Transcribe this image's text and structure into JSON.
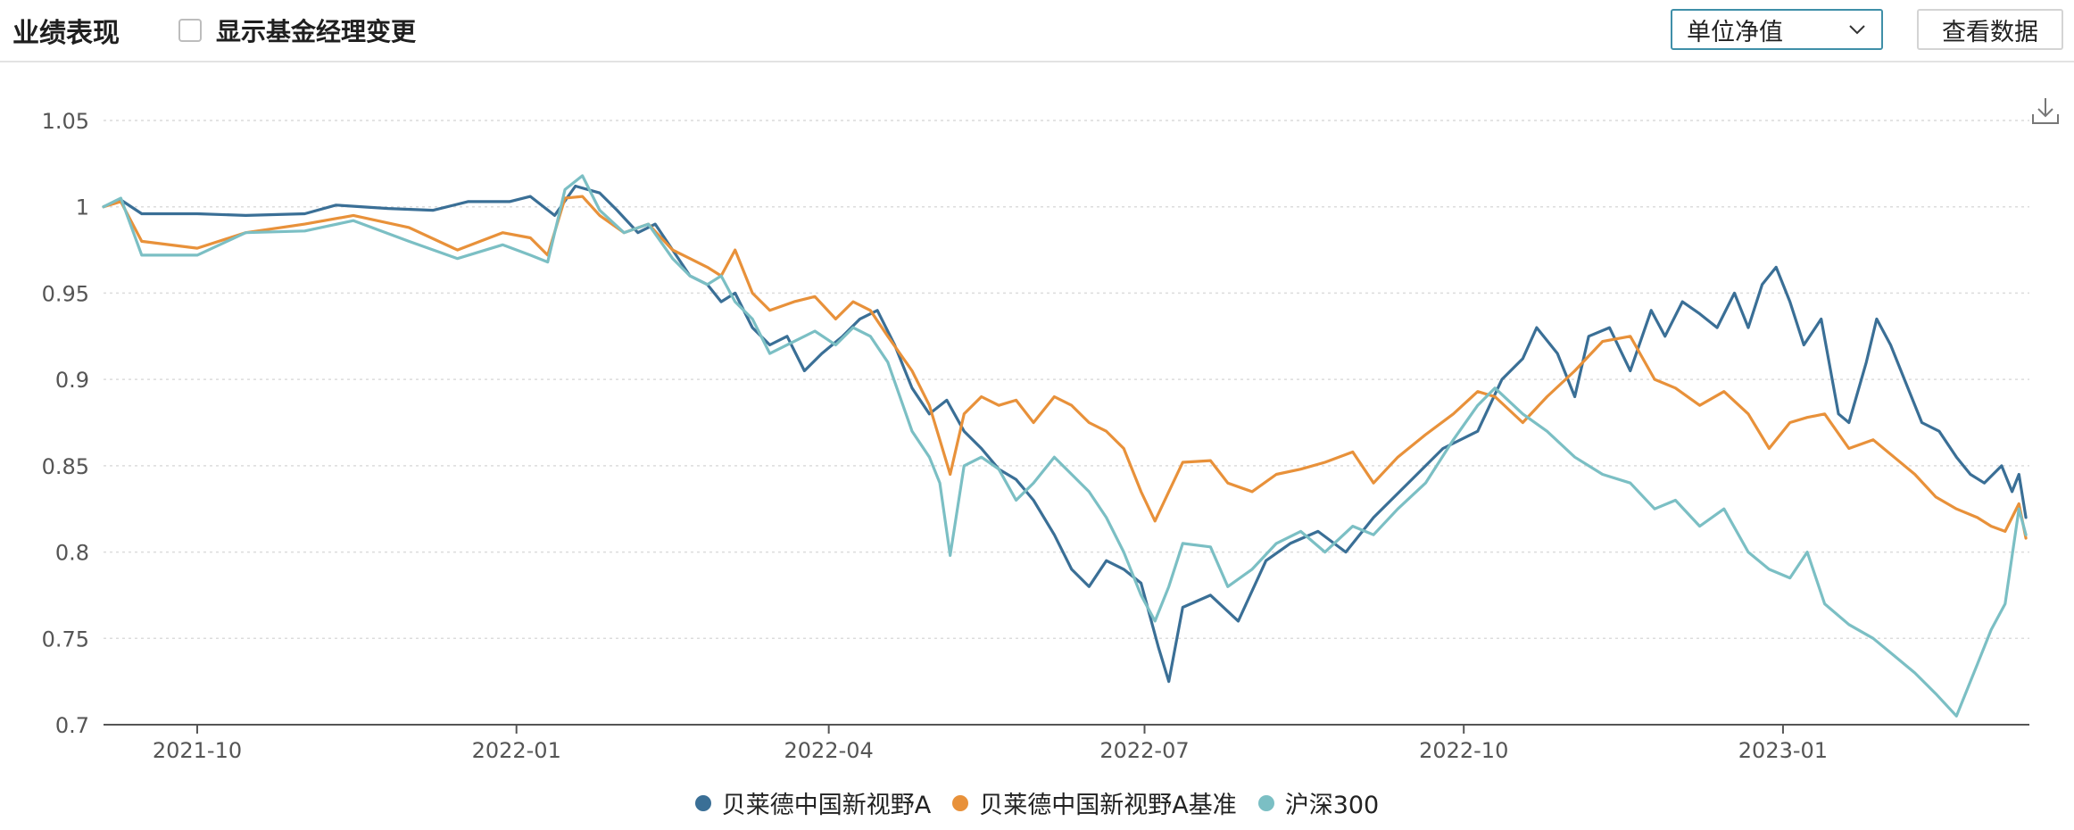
{
  "header": {
    "title": "业绩表现",
    "toggle_label": "显示基金经理变更",
    "select_value": "单位净值",
    "view_data_label": "查看数据"
  },
  "icons": {
    "dropdown": "chevron-down-icon",
    "download": "download-icon"
  },
  "colors": {
    "series_a": "#3a6f96",
    "series_b": "#e8913a",
    "series_c": "#7bbfc4",
    "select_border": "#3f8fa8"
  },
  "chart_data": {
    "type": "line",
    "ylim": [
      0.7,
      1.05
    ],
    "yticks": [
      0.7,
      0.75,
      0.8,
      0.85,
      0.9,
      0.95,
      1,
      1.05
    ],
    "ytick_labels": [
      "0.7",
      "0.75",
      "0.8",
      "0.85",
      "0.9",
      "0.95",
      "1",
      "1.05"
    ],
    "xlim": [
      "2021-09-04",
      "2023-03-13"
    ],
    "xticks": [
      "2021-10-01",
      "2022-01-01",
      "2022-04-01",
      "2022-07-01",
      "2022-10-01",
      "2023-01-01"
    ],
    "xtick_labels": [
      "2021-10",
      "2022-01",
      "2022-04",
      "2022-07",
      "2022-10",
      "2023-01"
    ],
    "grid": true,
    "legend": "bottom-center",
    "series": [
      {
        "name": "贝莱德中国新视野A",
        "color": "#3a6f96",
        "points": [
          [
            "2021-09-04",
            1.0
          ],
          [
            "2021-09-09",
            1.004
          ],
          [
            "2021-09-15",
            0.996
          ],
          [
            "2021-10-01",
            0.996
          ],
          [
            "2021-10-15",
            0.995
          ],
          [
            "2021-11-01",
            0.996
          ],
          [
            "2021-11-10",
            1.001
          ],
          [
            "2021-11-25",
            0.999
          ],
          [
            "2021-12-08",
            0.998
          ],
          [
            "2021-12-18",
            1.003
          ],
          [
            "2021-12-30",
            1.003
          ],
          [
            "2022-01-05",
            1.006
          ],
          [
            "2022-01-12",
            0.995
          ],
          [
            "2022-01-18",
            1.012
          ],
          [
            "2022-01-25",
            1.008
          ],
          [
            "2022-01-30",
            0.998
          ],
          [
            "2022-02-05",
            0.985
          ],
          [
            "2022-02-10",
            0.99
          ],
          [
            "2022-02-15",
            0.975
          ],
          [
            "2022-02-20",
            0.96
          ],
          [
            "2022-02-25",
            0.955
          ],
          [
            "2022-03-01",
            0.945
          ],
          [
            "2022-03-05",
            0.95
          ],
          [
            "2022-03-10",
            0.93
          ],
          [
            "2022-03-15",
            0.92
          ],
          [
            "2022-03-20",
            0.925
          ],
          [
            "2022-03-25",
            0.905
          ],
          [
            "2022-03-30",
            0.915
          ],
          [
            "2022-04-05",
            0.925
          ],
          [
            "2022-04-10",
            0.935
          ],
          [
            "2022-04-15",
            0.94
          ],
          [
            "2022-04-20",
            0.92
          ],
          [
            "2022-04-25",
            0.895
          ],
          [
            "2022-04-30",
            0.88
          ],
          [
            "2022-05-05",
            0.888
          ],
          [
            "2022-05-10",
            0.87
          ],
          [
            "2022-05-15",
            0.86
          ],
          [
            "2022-05-20",
            0.848
          ],
          [
            "2022-05-25",
            0.842
          ],
          [
            "2022-05-30",
            0.83
          ],
          [
            "2022-06-05",
            0.81
          ],
          [
            "2022-06-10",
            0.79
          ],
          [
            "2022-06-15",
            0.78
          ],
          [
            "2022-06-20",
            0.795
          ],
          [
            "2022-06-25",
            0.79
          ],
          [
            "2022-06-30",
            0.782
          ],
          [
            "2022-07-05",
            0.745
          ],
          [
            "2022-07-08",
            0.725
          ],
          [
            "2022-07-12",
            0.768
          ],
          [
            "2022-07-20",
            0.775
          ],
          [
            "2022-07-28",
            0.76
          ],
          [
            "2022-08-05",
            0.795
          ],
          [
            "2022-08-12",
            0.805
          ],
          [
            "2022-08-20",
            0.812
          ],
          [
            "2022-08-28",
            0.8
          ],
          [
            "2022-09-05",
            0.82
          ],
          [
            "2022-09-15",
            0.84
          ],
          [
            "2022-09-25",
            0.86
          ],
          [
            "2022-10-05",
            0.87
          ],
          [
            "2022-10-12",
            0.9
          ],
          [
            "2022-10-18",
            0.912
          ],
          [
            "2022-10-22",
            0.93
          ],
          [
            "2022-10-28",
            0.915
          ],
          [
            "2022-11-02",
            0.89
          ],
          [
            "2022-11-06",
            0.925
          ],
          [
            "2022-11-12",
            0.93
          ],
          [
            "2022-11-18",
            0.905
          ],
          [
            "2022-11-24",
            0.94
          ],
          [
            "2022-11-28",
            0.925
          ],
          [
            "2022-12-03",
            0.945
          ],
          [
            "2022-12-08",
            0.938
          ],
          [
            "2022-12-13",
            0.93
          ],
          [
            "2022-12-18",
            0.95
          ],
          [
            "2022-12-22",
            0.93
          ],
          [
            "2022-12-26",
            0.955
          ],
          [
            "2022-12-30",
            0.965
          ],
          [
            "2023-01-03",
            0.945
          ],
          [
            "2023-01-07",
            0.92
          ],
          [
            "2023-01-12",
            0.935
          ],
          [
            "2023-01-17",
            0.88
          ],
          [
            "2023-01-20",
            0.875
          ],
          [
            "2023-01-25",
            0.91
          ],
          [
            "2023-01-28",
            0.935
          ],
          [
            "2023-02-01",
            0.92
          ],
          [
            "2023-02-05",
            0.9
          ],
          [
            "2023-02-10",
            0.875
          ],
          [
            "2023-02-15",
            0.87
          ],
          [
            "2023-02-20",
            0.855
          ],
          [
            "2023-02-24",
            0.845
          ],
          [
            "2023-02-28",
            0.84
          ],
          [
            "2023-03-05",
            0.85
          ],
          [
            "2023-03-08",
            0.835
          ],
          [
            "2023-03-10",
            0.845
          ],
          [
            "2023-03-12",
            0.82
          ]
        ]
      },
      {
        "name": "贝莱德中国新视野A基准",
        "color": "#e8913a",
        "points": [
          [
            "2021-09-04",
            1.0
          ],
          [
            "2021-09-09",
            1.003
          ],
          [
            "2021-09-15",
            0.98
          ],
          [
            "2021-10-01",
            0.976
          ],
          [
            "2021-10-15",
            0.985
          ],
          [
            "2021-11-01",
            0.99
          ],
          [
            "2021-11-15",
            0.995
          ],
          [
            "2021-12-01",
            0.988
          ],
          [
            "2021-12-15",
            0.975
          ],
          [
            "2021-12-28",
            0.985
          ],
          [
            "2022-01-05",
            0.982
          ],
          [
            "2022-01-10",
            0.972
          ],
          [
            "2022-01-15",
            1.005
          ],
          [
            "2022-01-20",
            1.006
          ],
          [
            "2022-01-25",
            0.995
          ],
          [
            "2022-02-01",
            0.985
          ],
          [
            "2022-02-08",
            0.99
          ],
          [
            "2022-02-15",
            0.975
          ],
          [
            "2022-02-20",
            0.97
          ],
          [
            "2022-02-25",
            0.965
          ],
          [
            "2022-03-01",
            0.96
          ],
          [
            "2022-03-05",
            0.975
          ],
          [
            "2022-03-10",
            0.95
          ],
          [
            "2022-03-15",
            0.94
          ],
          [
            "2022-03-22",
            0.945
          ],
          [
            "2022-03-28",
            0.948
          ],
          [
            "2022-04-03",
            0.935
          ],
          [
            "2022-04-08",
            0.945
          ],
          [
            "2022-04-13",
            0.94
          ],
          [
            "2022-04-18",
            0.925
          ],
          [
            "2022-04-25",
            0.905
          ],
          [
            "2022-04-30",
            0.885
          ],
          [
            "2022-05-03",
            0.865
          ],
          [
            "2022-05-06",
            0.845
          ],
          [
            "2022-05-10",
            0.88
          ],
          [
            "2022-05-15",
            0.89
          ],
          [
            "2022-05-20",
            0.885
          ],
          [
            "2022-05-25",
            0.888
          ],
          [
            "2022-05-30",
            0.875
          ],
          [
            "2022-06-05",
            0.89
          ],
          [
            "2022-06-10",
            0.885
          ],
          [
            "2022-06-15",
            0.875
          ],
          [
            "2022-06-20",
            0.87
          ],
          [
            "2022-06-25",
            0.86
          ],
          [
            "2022-06-30",
            0.835
          ],
          [
            "2022-07-04",
            0.818
          ],
          [
            "2022-07-08",
            0.835
          ],
          [
            "2022-07-12",
            0.852
          ],
          [
            "2022-07-20",
            0.853
          ],
          [
            "2022-07-25",
            0.84
          ],
          [
            "2022-08-01",
            0.835
          ],
          [
            "2022-08-08",
            0.845
          ],
          [
            "2022-08-15",
            0.848
          ],
          [
            "2022-08-22",
            0.852
          ],
          [
            "2022-08-30",
            0.858
          ],
          [
            "2022-09-05",
            0.84
          ],
          [
            "2022-09-12",
            0.855
          ],
          [
            "2022-09-20",
            0.868
          ],
          [
            "2022-09-28",
            0.88
          ],
          [
            "2022-10-05",
            0.893
          ],
          [
            "2022-10-10",
            0.89
          ],
          [
            "2022-10-18",
            0.875
          ],
          [
            "2022-10-25",
            0.89
          ],
          [
            "2022-11-02",
            0.905
          ],
          [
            "2022-11-10",
            0.922
          ],
          [
            "2022-11-18",
            0.925
          ],
          [
            "2022-11-25",
            0.9
          ],
          [
            "2022-12-01",
            0.895
          ],
          [
            "2022-12-08",
            0.885
          ],
          [
            "2022-12-15",
            0.893
          ],
          [
            "2022-12-22",
            0.88
          ],
          [
            "2022-12-28",
            0.86
          ],
          [
            "2023-01-03",
            0.875
          ],
          [
            "2023-01-08",
            0.878
          ],
          [
            "2023-01-13",
            0.88
          ],
          [
            "2023-01-20",
            0.86
          ],
          [
            "2023-01-27",
            0.865
          ],
          [
            "2023-02-02",
            0.855
          ],
          [
            "2023-02-08",
            0.845
          ],
          [
            "2023-02-14",
            0.832
          ],
          [
            "2023-02-20",
            0.825
          ],
          [
            "2023-02-26",
            0.82
          ],
          [
            "2023-03-02",
            0.815
          ],
          [
            "2023-03-06",
            0.812
          ],
          [
            "2023-03-10",
            0.828
          ],
          [
            "2023-03-12",
            0.808
          ]
        ]
      },
      {
        "name": "沪深300",
        "color": "#7bbfc4",
        "points": [
          [
            "2021-09-04",
            1.0
          ],
          [
            "2021-09-09",
            1.005
          ],
          [
            "2021-09-15",
            0.972
          ],
          [
            "2021-10-01",
            0.972
          ],
          [
            "2021-10-15",
            0.985
          ],
          [
            "2021-11-01",
            0.986
          ],
          [
            "2021-11-15",
            0.992
          ],
          [
            "2021-12-01",
            0.98
          ],
          [
            "2021-12-15",
            0.97
          ],
          [
            "2021-12-28",
            0.978
          ],
          [
            "2022-01-05",
            0.972
          ],
          [
            "2022-01-10",
            0.968
          ],
          [
            "2022-01-15",
            1.01
          ],
          [
            "2022-01-20",
            1.018
          ],
          [
            "2022-01-25",
            0.998
          ],
          [
            "2022-02-01",
            0.985
          ],
          [
            "2022-02-08",
            0.99
          ],
          [
            "2022-02-15",
            0.97
          ],
          [
            "2022-02-20",
            0.96
          ],
          [
            "2022-02-25",
            0.955
          ],
          [
            "2022-03-01",
            0.96
          ],
          [
            "2022-03-05",
            0.945
          ],
          [
            "2022-03-10",
            0.935
          ],
          [
            "2022-03-15",
            0.915
          ],
          [
            "2022-03-22",
            0.922
          ],
          [
            "2022-03-28",
            0.928
          ],
          [
            "2022-04-03",
            0.92
          ],
          [
            "2022-04-08",
            0.93
          ],
          [
            "2022-04-13",
            0.925
          ],
          [
            "2022-04-18",
            0.91
          ],
          [
            "2022-04-25",
            0.87
          ],
          [
            "2022-04-30",
            0.855
          ],
          [
            "2022-05-03",
            0.84
          ],
          [
            "2022-05-06",
            0.798
          ],
          [
            "2022-05-10",
            0.85
          ],
          [
            "2022-05-15",
            0.855
          ],
          [
            "2022-05-20",
            0.848
          ],
          [
            "2022-05-25",
            0.83
          ],
          [
            "2022-05-30",
            0.84
          ],
          [
            "2022-06-05",
            0.855
          ],
          [
            "2022-06-10",
            0.845
          ],
          [
            "2022-06-15",
            0.835
          ],
          [
            "2022-06-20",
            0.82
          ],
          [
            "2022-06-25",
            0.8
          ],
          [
            "2022-06-30",
            0.775
          ],
          [
            "2022-07-04",
            0.76
          ],
          [
            "2022-07-08",
            0.78
          ],
          [
            "2022-07-12",
            0.805
          ],
          [
            "2022-07-20",
            0.803
          ],
          [
            "2022-07-25",
            0.78
          ],
          [
            "2022-08-01",
            0.79
          ],
          [
            "2022-08-08",
            0.805
          ],
          [
            "2022-08-15",
            0.812
          ],
          [
            "2022-08-22",
            0.8
          ],
          [
            "2022-08-30",
            0.815
          ],
          [
            "2022-09-05",
            0.81
          ],
          [
            "2022-09-12",
            0.825
          ],
          [
            "2022-09-20",
            0.84
          ],
          [
            "2022-09-28",
            0.865
          ],
          [
            "2022-10-05",
            0.885
          ],
          [
            "2022-10-10",
            0.895
          ],
          [
            "2022-10-18",
            0.88
          ],
          [
            "2022-10-25",
            0.87
          ],
          [
            "2022-11-02",
            0.855
          ],
          [
            "2022-11-10",
            0.845
          ],
          [
            "2022-11-18",
            0.84
          ],
          [
            "2022-11-25",
            0.825
          ],
          [
            "2022-12-01",
            0.83
          ],
          [
            "2022-12-08",
            0.815
          ],
          [
            "2022-12-15",
            0.825
          ],
          [
            "2022-12-22",
            0.8
          ],
          [
            "2022-12-28",
            0.79
          ],
          [
            "2023-01-03",
            0.785
          ],
          [
            "2023-01-08",
            0.8
          ],
          [
            "2023-01-13",
            0.77
          ],
          [
            "2023-01-20",
            0.758
          ],
          [
            "2023-01-27",
            0.75
          ],
          [
            "2023-02-02",
            0.74
          ],
          [
            "2023-02-08",
            0.73
          ],
          [
            "2023-02-14",
            0.718
          ],
          [
            "2023-02-20",
            0.705
          ],
          [
            "2023-02-26",
            0.735
          ],
          [
            "2023-03-02",
            0.755
          ],
          [
            "2023-03-06",
            0.77
          ],
          [
            "2023-03-10",
            0.825
          ],
          [
            "2023-03-12",
            0.81
          ]
        ]
      }
    ]
  }
}
